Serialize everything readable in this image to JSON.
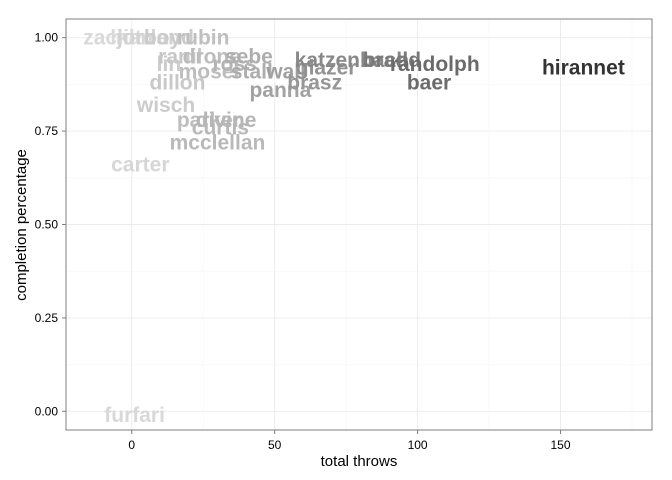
{
  "chart_data": {
    "type": "scatter",
    "title": "",
    "xlabel": "total throws",
    "ylabel": "completion percentage",
    "xlim": [
      -23,
      182
    ],
    "ylim": [
      -0.05,
      1.05
    ],
    "xticks": [
      0,
      50,
      100,
      150
    ],
    "yticks": [
      0.0,
      0.25,
      0.5,
      0.75,
      1.0
    ],
    "grid": true,
    "panel_background": "#ffffff",
    "grid_color": "#ebebeb",
    "border_color": "#7f7f7f",
    "color_scale": {
      "low": "#d9d9d9",
      "high": "#333333",
      "min": 0,
      "max": 158
    },
    "points": [
      {
        "label": "hirannet",
        "x": 158,
        "y": 0.92
      },
      {
        "label": "randolph",
        "x": 106,
        "y": 0.93
      },
      {
        "label": "baer",
        "x": 104,
        "y": 0.88
      },
      {
        "label": "bradd",
        "x": 91,
        "y": 0.94
      },
      {
        "label": "katzenbach",
        "x": 77,
        "y": 0.94
      },
      {
        "label": "glazer",
        "x": 68,
        "y": 0.92
      },
      {
        "label": "brasz",
        "x": 64,
        "y": 0.88
      },
      {
        "label": "wall",
        "x": 54,
        "y": 0.91
      },
      {
        "label": "panna",
        "x": 52,
        "y": 0.86
      },
      {
        "label": "stall",
        "x": 42,
        "y": 0.91
      },
      {
        "label": "sebe",
        "x": 41,
        "y": 0.95
      },
      {
        "label": "ross",
        "x": 36,
        "y": 0.93
      },
      {
        "label": "drone",
        "x": 28,
        "y": 0.95
      },
      {
        "label": "mosel",
        "x": 27,
        "y": 0.91
      },
      {
        "label": "ranil",
        "x": 17,
        "y": 0.95
      },
      {
        "label": "lin",
        "x": 13,
        "y": 0.93
      },
      {
        "label": "dillon",
        "x": 16,
        "y": 0.88
      },
      {
        "label": "wisch",
        "x": 12,
        "y": 0.82
      },
      {
        "label": "rubin",
        "x": 25,
        "y": 1.0
      },
      {
        "label": "mcclellan",
        "x": 30,
        "y": 0.72
      },
      {
        "label": "curtis",
        "x": 31,
        "y": 0.76
      },
      {
        "label": "divine",
        "x": 33,
        "y": 0.78
      },
      {
        "label": "parker",
        "x": 27,
        "y": 0.78
      },
      {
        "label": "carter",
        "x": 3,
        "y": 0.66
      },
      {
        "label": "furfari",
        "x": 1,
        "y": -0.01
      },
      {
        "label": "zack",
        "x": -9,
        "y": 1.0
      },
      {
        "label": "hilt",
        "x": -2,
        "y": 1.0
      },
      {
        "label": "jordan",
        "x": 6,
        "y": 1.0
      },
      {
        "label": "boyd",
        "x": 13,
        "y": 1.0
      },
      {
        "label": "nan",
        "x": 1,
        "y": 1.0
      }
    ]
  }
}
